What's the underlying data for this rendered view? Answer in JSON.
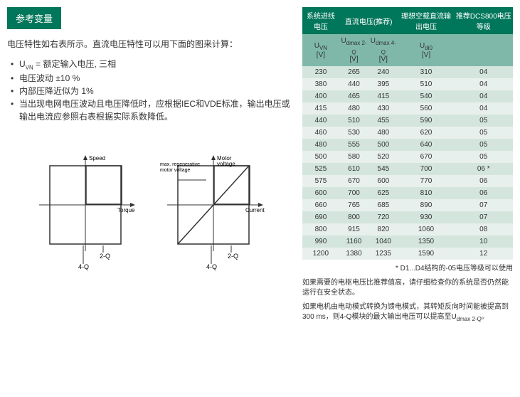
{
  "header": {
    "title": "参考变量"
  },
  "intro": "电压特性如右表所示。直流电压特性可以用下面的图来计算：",
  "bullets": [
    "U_VN = 额定输入电压, 三相",
    "电压波动 ±10 %",
    "内部压降近似为 1%",
    "当出现电网电压波动且电压降低时，应根据IEC和VDE标准，输出电压或输出电流应参照右表根据实际系数降低。"
  ],
  "diagram": {
    "left": {
      "ylabel": "Speed",
      "xlabel": "Torque",
      "q2": "2-Q",
      "q4": "4-Q"
    },
    "right": {
      "ylabel": "Motor\nvoltage",
      "xlabel": "Current",
      "note": "max. regenerative\nmotor voltage",
      "q2": "2-Q",
      "q4": "4-Q"
    }
  },
  "table": {
    "headers": {
      "col1": "系统进线电压",
      "col2": "直流电压(推荐)",
      "col3": "理想空载直流输出电压",
      "col4": "推荐DCS800电压等级"
    },
    "subheaders": {
      "c1": "U_VN",
      "c1u": "[V]",
      "c2a": "U_dmax 2-Q",
      "c2au": "[V]",
      "c2b": "U_dmax 4-Q",
      "c2bu": "[V]",
      "c3": "U_di0",
      "c3u": "[V]",
      "c4": ""
    },
    "rows": [
      [
        "230",
        "265",
        "240",
        "310",
        "04"
      ],
      [
        "380",
        "440",
        "395",
        "510",
        "04"
      ],
      [
        "400",
        "465",
        "415",
        "540",
        "04"
      ],
      [
        "415",
        "480",
        "430",
        "560",
        "04"
      ],
      [
        "440",
        "510",
        "455",
        "590",
        "05"
      ],
      [
        "460",
        "530",
        "480",
        "620",
        "05"
      ],
      [
        "480",
        "555",
        "500",
        "640",
        "05"
      ],
      [
        "500",
        "580",
        "520",
        "670",
        "05"
      ],
      [
        "525",
        "610",
        "545",
        "700",
        "06 *"
      ],
      [
        "575",
        "670",
        "600",
        "770",
        "06"
      ],
      [
        "600",
        "700",
        "625",
        "810",
        "06"
      ],
      [
        "660",
        "765",
        "685",
        "890",
        "07"
      ],
      [
        "690",
        "800",
        "720",
        "930",
        "07"
      ],
      [
        "800",
        "915",
        "820",
        "1060",
        "08"
      ],
      [
        "990",
        "1160",
        "1040",
        "1350",
        "10"
      ],
      [
        "1200",
        "1380",
        "1235",
        "1590",
        "12"
      ]
    ]
  },
  "footnotes": {
    "f1": "* D1...D4结构的-05电压等级可以使用",
    "f2": "如果需要的电枢电压比推荐值高，请仔细检查你的系统是否仍然能运行在安全状态。",
    "f3": "如果电机由电动模式转换为馈电模式，其转矩反向时间能被提高到300 ms，则4-Q模块的最大输出电压可以提高至U_dmax 2-Q。"
  }
}
